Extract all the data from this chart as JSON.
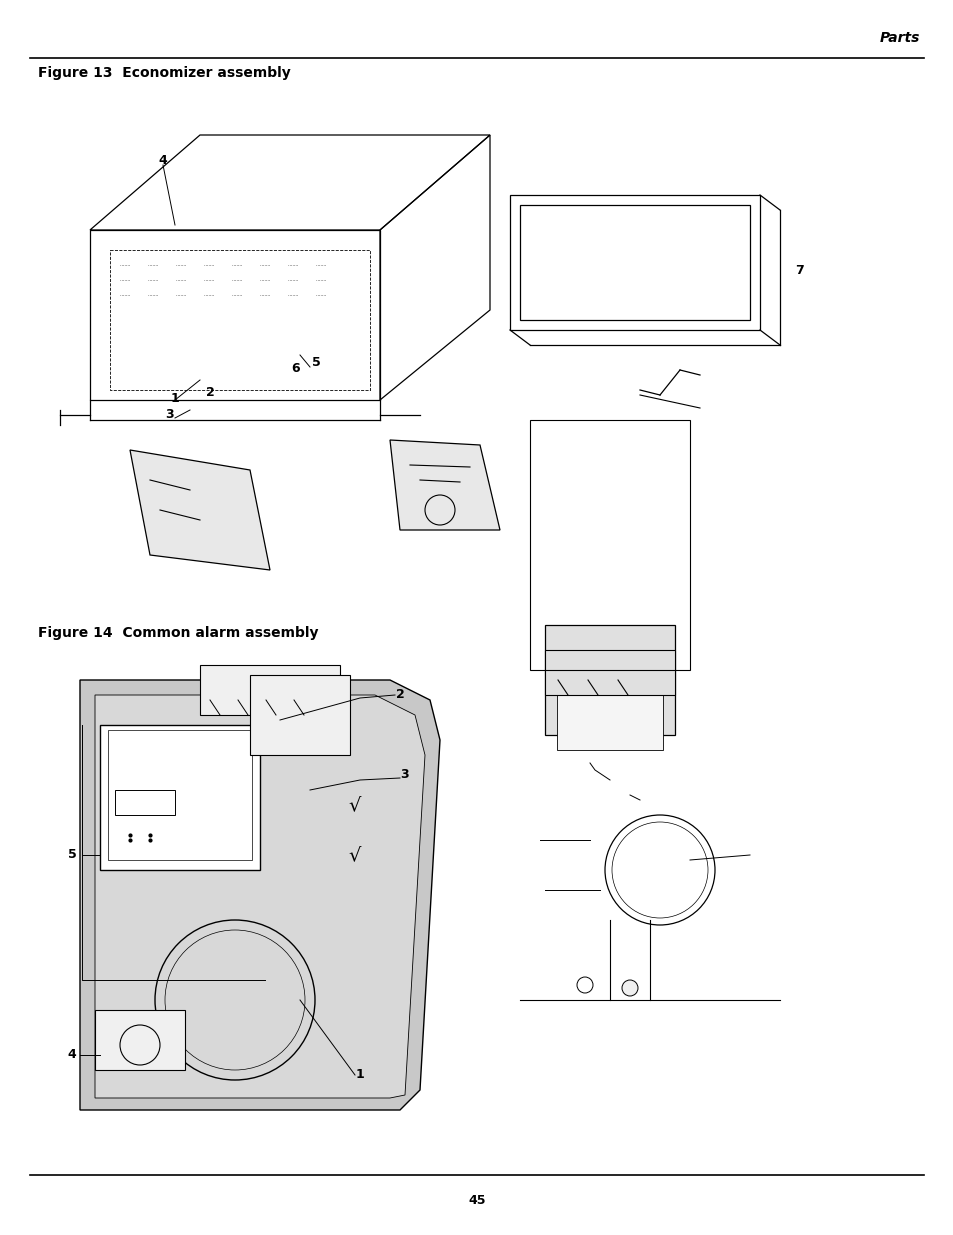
{
  "page_title": "Parts",
  "figure1_title": "Figure 13  Economizer assembly",
  "figure2_title": "Figure 14  Common alarm assembly",
  "page_number": "45",
  "bg_color": "#ffffff",
  "text_color": "#000000",
  "line_color": "#000000",
  "title_fontsize": 10,
  "body_fontsize": 9,
  "page_num_fontsize": 9,
  "header_italic": true
}
